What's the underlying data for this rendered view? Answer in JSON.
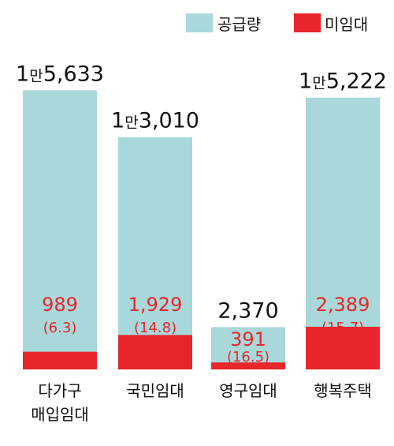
{
  "chart_data": {
    "type": "bar",
    "stacked": true,
    "categories": [
      {
        "line1": "다가구",
        "line2": "매입임대"
      },
      {
        "line1": "국민임대",
        "line2": ""
      },
      {
        "line1": "영구임대",
        "line2": ""
      },
      {
        "line1": "행복주택",
        "line2": ""
      }
    ],
    "series": [
      {
        "name": "공급량",
        "color": "#a8d8da",
        "values": [
          15633,
          13010,
          2370,
          15222
        ]
      },
      {
        "name": "미임대",
        "color": "#e8262c",
        "values": [
          989,
          1929,
          391,
          2389
        ]
      }
    ],
    "total_labels": [
      {
        "prefix": "1",
        "unit": "만",
        "rest": "5,633"
      },
      {
        "prefix": "1",
        "unit": "만",
        "rest": "3,010"
      },
      {
        "prefix": "",
        "unit": "",
        "rest": "2,370"
      },
      {
        "prefix": "1",
        "unit": "만",
        "rest": "5,222"
      }
    ],
    "unsold_labels": [
      "989",
      "1,929",
      "391",
      "2,389"
    ],
    "percent_labels": [
      "(6.3)",
      "(14.8)",
      "(16.5)",
      "(15.7)"
    ],
    "legend_position": "top-right",
    "ylim": [
      0,
      16800
    ]
  }
}
